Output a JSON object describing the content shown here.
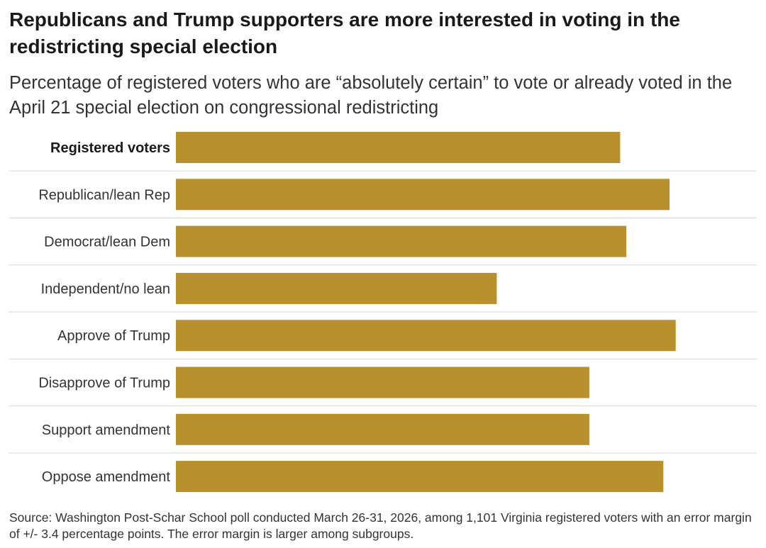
{
  "header": {
    "title": "Republicans and Trump supporters are more interested in voting in the redistricting special election",
    "subtitle": "Percentage of registered voters who are “absolutely certain” to vote or already voted in the April 21 special election on congressional redistricting"
  },
  "footer": {
    "source": "Source: Washington Post-Schar School poll conducted March 26-31, 2026, among 1,101 Virginia registered voters with an error margin of +/- 3.4 percentage points. The error margin is larger among subgroups."
  },
  "colors": {
    "bar": "#b8912e",
    "divider": "#d9d9d9",
    "label": "#333333"
  },
  "chart_data": {
    "type": "bar",
    "orientation": "horizontal",
    "title": "Republicans and Trump supporters are more interested in voting in the redistricting special election",
    "subtitle": "Percentage of registered voters who are “absolutely certain” to vote or already voted in the April 21 special election on congressional redistricting",
    "xlabel": "",
    "ylabel": "",
    "xlim": [
      0,
      100
    ],
    "grid": false,
    "legend": "none",
    "categories": [
      "Registered voters",
      "Republican/lean Rep",
      "Democrat/lean Dem",
      "Independent/no lean",
      "Approve of Trump",
      "Disapprove of Trump",
      "Support amendment",
      "Oppose amendment"
    ],
    "emphasized_categories": [
      "Registered voters"
    ],
    "values": [
      72,
      80,
      73,
      52,
      81,
      67,
      67,
      79
    ]
  }
}
